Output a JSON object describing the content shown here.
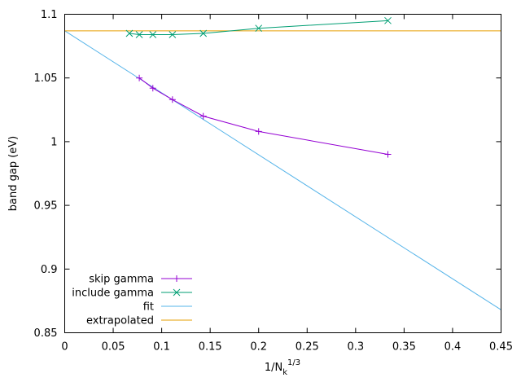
{
  "chart_data": {
    "type": "line",
    "title": "",
    "xlabel": "1/N",
    "xlabel_sub": "k",
    "xlabel_sup": "1/3",
    "ylabel": "band gap (eV)",
    "xlim": [
      0,
      0.45
    ],
    "ylim": [
      0.85,
      1.1
    ],
    "xticks": [
      0,
      0.05,
      0.1,
      0.15,
      0.2,
      0.25,
      0.3,
      0.35,
      0.4,
      0.45
    ],
    "xtick_labels": [
      "0",
      "0.05",
      "0.1",
      "0.15",
      "0.2",
      "0.25",
      "0.3",
      "0.35",
      "0.4",
      "0.45"
    ],
    "yticks": [
      0.85,
      0.9,
      0.95,
      1,
      1.05,
      1.1
    ],
    "ytick_labels": [
      "0.85",
      "0.9",
      "0.95",
      "1",
      "1.05",
      "1.1"
    ],
    "grid": false,
    "legend_position": "bottom-left",
    "series": [
      {
        "name": "skip gamma",
        "color": "#9400d3",
        "marker": "plus",
        "x": [
          0.3333,
          0.2,
          0.1429,
          0.1111,
          0.0909,
          0.0769
        ],
        "y": [
          0.99,
          1.008,
          1.02,
          1.033,
          1.042,
          1.05
        ]
      },
      {
        "name": "include gamma",
        "color": "#009e73",
        "marker": "cross",
        "x": [
          0.3333,
          0.2,
          0.1429,
          0.1111,
          0.0909,
          0.0769,
          0.0667
        ],
        "y": [
          1.095,
          1.089,
          1.085,
          1.084,
          1.084,
          1.084,
          1.085
        ]
      },
      {
        "name": "fit",
        "color": "#56b4e9",
        "marker": "none",
        "x": [
          0,
          0.45
        ],
        "y": [
          1.087,
          0.868
        ]
      },
      {
        "name": "extrapolated",
        "color": "#e69f00",
        "marker": "none",
        "x": [
          0,
          0.45
        ],
        "y": [
          1.087,
          1.087
        ]
      }
    ]
  }
}
